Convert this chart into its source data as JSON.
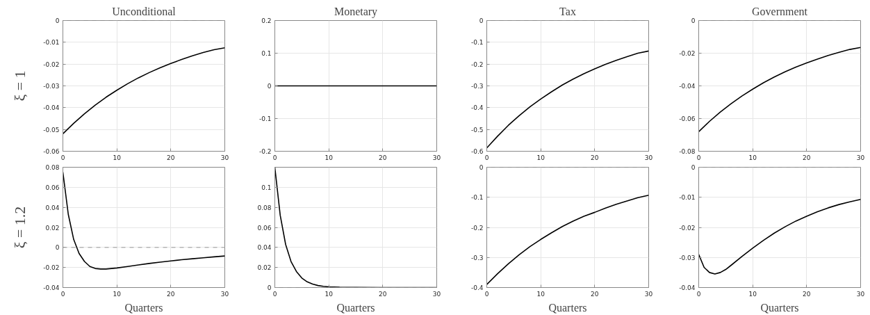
{
  "chart_data": [
    {
      "type": "line",
      "title": "Unconditional",
      "ylabel": "ξ = 1",
      "xlim": [
        0,
        30
      ],
      "ylim": [
        -0.06,
        0
      ],
      "xticks": [
        0,
        10,
        20,
        30
      ],
      "yticks": [
        -0.06,
        -0.05,
        -0.04,
        -0.03,
        -0.02,
        -0.01,
        0
      ],
      "grid": true,
      "ref_lines": [
        {
          "axis": "y",
          "value": 0,
          "color": "#999999",
          "line_style": "dashed"
        }
      ],
      "series": [
        {
          "color": "#000000",
          "x": [
            0,
            2,
            4,
            6,
            8,
            10,
            12,
            14,
            16,
            18,
            20,
            22,
            24,
            26,
            28,
            30
          ],
          "values": [
            -0.052,
            -0.0472,
            -0.0428,
            -0.0388,
            -0.0352,
            -0.032,
            -0.029,
            -0.0263,
            -0.0239,
            -0.0217,
            -0.0197,
            -0.0179,
            -0.0162,
            -0.0147,
            -0.0134,
            -0.0125
          ]
        }
      ]
    },
    {
      "type": "line",
      "title": "Monetary",
      "xlim": [
        0,
        30
      ],
      "ylim": [
        -0.2,
        0.2
      ],
      "xticks": [
        0,
        10,
        20,
        30
      ],
      "yticks": [
        -0.2,
        -0.1,
        0,
        0.1,
        0.2
      ],
      "grid": true,
      "series": [
        {
          "color": "#000000",
          "x": [
            0,
            30
          ],
          "values": [
            0,
            0
          ]
        }
      ]
    },
    {
      "type": "line",
      "title": "Tax",
      "xlim": [
        0,
        30
      ],
      "ylim": [
        -0.6,
        0
      ],
      "xticks": [
        0,
        10,
        20,
        30
      ],
      "yticks": [
        -0.6,
        -0.5,
        -0.4,
        -0.3,
        -0.2,
        -0.1,
        0
      ],
      "grid": true,
      "ref_lines": [
        {
          "axis": "y",
          "value": 0,
          "color": "#999999",
          "line_style": "dashed"
        }
      ],
      "series": [
        {
          "color": "#000000",
          "x": [
            0,
            2,
            4,
            6,
            8,
            10,
            12,
            14,
            16,
            18,
            20,
            22,
            24,
            26,
            28,
            30
          ],
          "values": [
            -0.585,
            -0.531,
            -0.481,
            -0.437,
            -0.396,
            -0.36,
            -0.327,
            -0.296,
            -0.269,
            -0.244,
            -0.222,
            -0.201,
            -0.183,
            -0.166,
            -0.15,
            -0.14
          ]
        }
      ]
    },
    {
      "type": "line",
      "title": "Government",
      "xlim": [
        0,
        30
      ],
      "ylim": [
        -0.08,
        0
      ],
      "xticks": [
        0,
        10,
        20,
        30
      ],
      "yticks": [
        -0.08,
        -0.06,
        -0.04,
        -0.02,
        0
      ],
      "grid": true,
      "ref_lines": [
        {
          "axis": "y",
          "value": 0,
          "color": "#999999",
          "line_style": "dashed"
        }
      ],
      "series": [
        {
          "color": "#000000",
          "x": [
            0,
            2,
            4,
            6,
            8,
            10,
            12,
            14,
            16,
            18,
            20,
            22,
            24,
            26,
            28,
            30
          ],
          "values": [
            -0.068,
            -0.0617,
            -0.056,
            -0.0509,
            -0.0462,
            -0.042,
            -0.0381,
            -0.0346,
            -0.0314,
            -0.0285,
            -0.026,
            -0.0236,
            -0.0214,
            -0.0195,
            -0.0177,
            -0.0165
          ]
        }
      ]
    },
    {
      "type": "line",
      "ylabel": "ξ = 1.2",
      "xlabel": "Quarters",
      "xlim": [
        0,
        30
      ],
      "ylim": [
        -0.04,
        0.08
      ],
      "xticks": [
        0,
        10,
        20,
        30
      ],
      "yticks": [
        -0.04,
        -0.02,
        0,
        0.02,
        0.04,
        0.06,
        0.08
      ],
      "grid": true,
      "ref_lines": [
        {
          "axis": "y",
          "value": 0,
          "color": "#999999",
          "line_style": "dashed"
        }
      ],
      "series": [
        {
          "color": "#000000",
          "x": [
            0,
            1,
            2,
            3,
            4,
            5,
            6,
            7,
            8,
            9,
            10,
            12,
            14,
            16,
            18,
            20,
            22,
            24,
            26,
            28,
            30
          ],
          "values": [
            0.075,
            0.033,
            0.008,
            -0.006,
            -0.014,
            -0.019,
            -0.021,
            -0.0215,
            -0.0215,
            -0.021,
            -0.0205,
            -0.019,
            -0.0175,
            -0.016,
            -0.0147,
            -0.0135,
            -0.0123,
            -0.0113,
            -0.0103,
            -0.0094,
            -0.0085
          ]
        }
      ]
    },
    {
      "type": "line",
      "xlabel": "Quarters",
      "xlim": [
        0,
        30
      ],
      "ylim": [
        0,
        0.12
      ],
      "xticks": [
        0,
        10,
        20,
        30
      ],
      "yticks": [
        0,
        0.02,
        0.04,
        0.06,
        0.08,
        0.1
      ],
      "grid": true,
      "ref_lines": [
        {
          "axis": "y",
          "value": 0,
          "color": "#999999",
          "line_style": "dashed"
        }
      ],
      "series": [
        {
          "color": "#000000",
          "x": [
            0,
            1,
            2,
            3,
            4,
            5,
            6,
            7,
            8,
            9,
            10,
            12,
            15,
            20,
            25,
            30
          ],
          "values": [
            0.12,
            0.072,
            0.043,
            0.026,
            0.016,
            0.0095,
            0.0057,
            0.0034,
            0.002,
            0.0012,
            0.0007,
            0.0003,
            0.0001,
            0,
            0,
            0
          ]
        }
      ]
    },
    {
      "type": "line",
      "xlabel": "Quarters",
      "xlim": [
        0,
        30
      ],
      "ylim": [
        -0.4,
        0
      ],
      "xticks": [
        0,
        10,
        20,
        30
      ],
      "yticks": [
        -0.4,
        -0.3,
        -0.2,
        -0.1,
        0
      ],
      "grid": true,
      "ref_lines": [
        {
          "axis": "y",
          "value": 0,
          "color": "#999999",
          "line_style": "dashed"
        }
      ],
      "series": [
        {
          "color": "#000000",
          "x": [
            0,
            2,
            4,
            6,
            8,
            10,
            12,
            14,
            16,
            18,
            20,
            22,
            24,
            26,
            28,
            30
          ],
          "values": [
            -0.39,
            -0.354,
            -0.321,
            -0.291,
            -0.264,
            -0.24,
            -0.218,
            -0.197,
            -0.179,
            -0.163,
            -0.15,
            -0.136,
            -0.123,
            -0.112,
            -0.101,
            -0.093
          ]
        }
      ]
    },
    {
      "type": "line",
      "xlabel": "Quarters",
      "xlim": [
        0,
        30
      ],
      "ylim": [
        -0.04,
        0
      ],
      "xticks": [
        0,
        10,
        20,
        30
      ],
      "yticks": [
        -0.04,
        -0.03,
        -0.02,
        -0.01,
        0
      ],
      "grid": true,
      "ref_lines": [
        {
          "axis": "y",
          "value": 0,
          "color": "#999999",
          "line_style": "dashed"
        }
      ],
      "series": [
        {
          "color": "#000000",
          "x": [
            0,
            1,
            2,
            3,
            4,
            5,
            6,
            8,
            10,
            12,
            14,
            16,
            18,
            20,
            22,
            24,
            26,
            28,
            30
          ],
          "values": [
            -0.029,
            -0.0333,
            -0.035,
            -0.0355,
            -0.035,
            -0.034,
            -0.0326,
            -0.0297,
            -0.0269,
            -0.0243,
            -0.0219,
            -0.0198,
            -0.0179,
            -0.0163,
            -0.0148,
            -0.0135,
            -0.0124,
            -0.0115,
            -0.0107
          ]
        }
      ]
    }
  ]
}
